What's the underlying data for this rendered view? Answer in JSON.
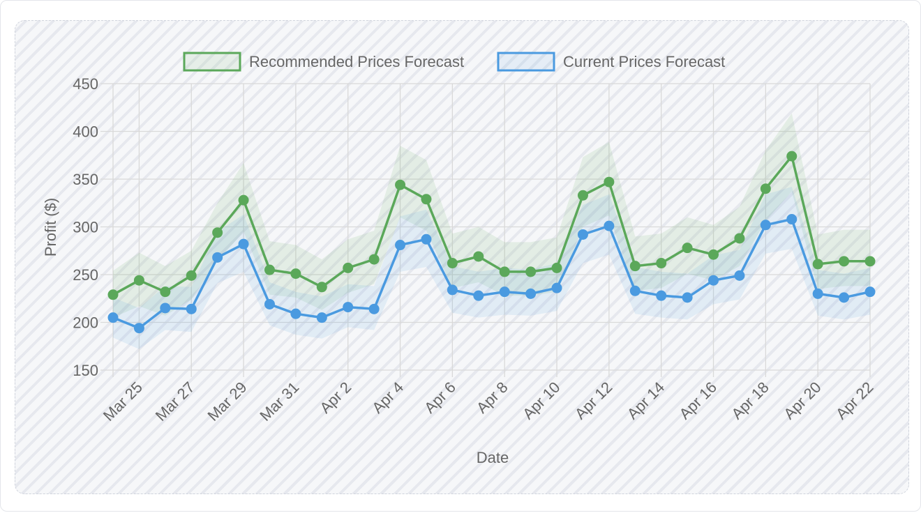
{
  "chart_data": {
    "type": "line",
    "title": "",
    "xlabel": "Date",
    "ylabel": "Profit ($)",
    "ylim": [
      150,
      450
    ],
    "y_ticks": [
      150,
      200,
      250,
      300,
      350,
      400,
      450
    ],
    "grid": true,
    "legend_position": "top-center",
    "x_tick_labels": [
      "Mar 25",
      "Mar 27",
      "Mar 29",
      "Mar 31",
      "Apr 2",
      "Apr 4",
      "Apr 6",
      "Apr 8",
      "Apr 10",
      "Apr 12",
      "Apr 14",
      "Apr 16",
      "Apr 18",
      "Apr 20",
      "Apr 22"
    ],
    "x": [
      "Mar 24",
      "Mar 25",
      "Mar 26",
      "Mar 27",
      "Mar 28",
      "Mar 29",
      "Mar 30",
      "Mar 31",
      "Apr 1",
      "Apr 2",
      "Apr 3",
      "Apr 4",
      "Apr 5",
      "Apr 6",
      "Apr 7",
      "Apr 8",
      "Apr 9",
      "Apr 10",
      "Apr 11",
      "Apr 12",
      "Apr 13",
      "Apr 14",
      "Apr 15",
      "Apr 16",
      "Apr 17",
      "Apr 18",
      "Apr 19",
      "Apr 20",
      "Apr 21",
      "Apr 22"
    ],
    "series": [
      {
        "name": "Recommended Prices Forecast",
        "color": "#5ba85a",
        "values": [
          229,
          244,
          232,
          249,
          294,
          328,
          255,
          251,
          237,
          257,
          266,
          344,
          329,
          262,
          269,
          253,
          253,
          257,
          333,
          347,
          259,
          262,
          278,
          271,
          288,
          340,
          374,
          261,
          264,
          264
        ],
        "upper": [
          254,
          273,
          259,
          275,
          325,
          367,
          285,
          281,
          266,
          287,
          296,
          385,
          370,
          293,
          300,
          284,
          284,
          289,
          373,
          389,
          290,
          293,
          310,
          302,
          321,
          380,
          419,
          292,
          297,
          297
        ],
        "lower": [
          205,
          217,
          207,
          224,
          264,
          295,
          229,
          226,
          213,
          231,
          240,
          310,
          296,
          236,
          242,
          228,
          228,
          232,
          300,
          312,
          233,
          236,
          251,
          244,
          259,
          306,
          337,
          235,
          238,
          238
        ]
      },
      {
        "name": "Current Prices Forecast",
        "color": "#4a9ae0",
        "values": [
          205,
          194,
          215,
          214,
          268,
          282,
          219,
          209,
          205,
          216,
          214,
          281,
          287,
          234,
          228,
          232,
          230,
          236,
          292,
          301,
          233,
          228,
          226,
          244,
          249,
          302,
          308,
          230,
          226,
          232
        ],
        "upper": [
          226,
          215,
          238,
          237,
          295,
          313,
          242,
          232,
          227,
          240,
          238,
          311,
          318,
          259,
          253,
          257,
          255,
          262,
          323,
          334,
          258,
          253,
          251,
          270,
          276,
          334,
          342,
          255,
          251,
          257
        ],
        "lower": [
          184,
          172,
          192,
          190,
          241,
          253,
          197,
          187,
          183,
          195,
          192,
          253,
          258,
          210,
          205,
          208,
          207,
          212,
          262,
          271,
          209,
          205,
          203,
          219,
          224,
          272,
          277,
          207,
          203,
          208
        ]
      }
    ]
  }
}
